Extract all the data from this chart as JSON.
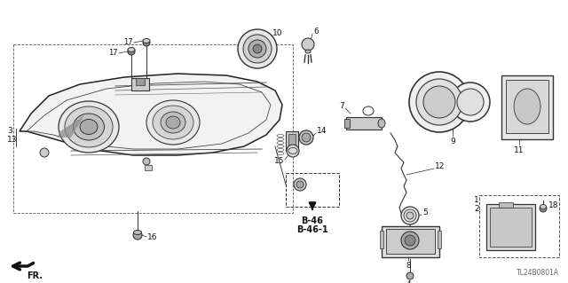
{
  "background_color": "#ffffff",
  "line_color": "#000000",
  "fig_width": 6.4,
  "fig_height": 3.19,
  "dpi": 100,
  "diagram_id": "TL24B0801A",
  "ref_label_line1": "B-46",
  "ref_label_line2": "B-46-1"
}
